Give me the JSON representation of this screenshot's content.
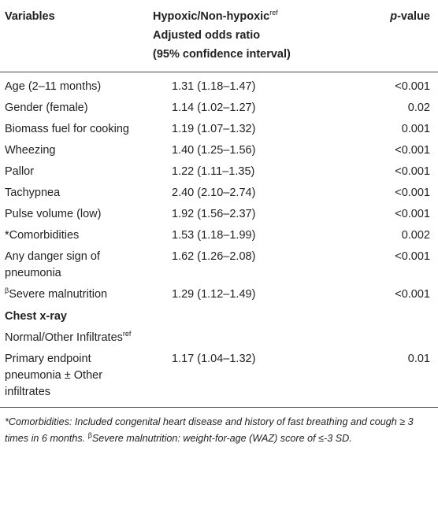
{
  "table": {
    "headers": {
      "variables": "Variables",
      "ratio_line1": "Hypoxic/Non-hypoxic",
      "ratio_line1_sup": "ref",
      "ratio_line2": "Adjusted odds ratio",
      "ratio_line3": "(95% confidence interval)",
      "pvalue_italic": "p",
      "pvalue_rest": "-value"
    },
    "rows": [
      {
        "prefix": "",
        "label": "Age (2–11 months)",
        "value": "1.31 (1.18–1.47)",
        "p": "<0.001"
      },
      {
        "prefix": "",
        "label": "Gender (female)",
        "value": "1.14 (1.02–1.27)",
        "p": "0.02"
      },
      {
        "prefix": "",
        "label": "Biomass fuel for cooking",
        "value": "1.19 (1.07–1.32)",
        "p": "0.001"
      },
      {
        "prefix": "",
        "label": "Wheezing",
        "value": "1.40 (1.25–1.56)",
        "p": "<0.001"
      },
      {
        "prefix": "",
        "label": "Pallor",
        "value": "1.22 (1.11–1.35)",
        "p": "<0.001"
      },
      {
        "prefix": "",
        "label": "Tachypnea",
        "value": "2.40 (2.10–2.74)",
        "p": "<0.001"
      },
      {
        "prefix": "",
        "label": "Pulse volume (low)",
        "value": "1.92 (1.56–2.37)",
        "p": "<0.001"
      },
      {
        "prefix": "",
        "label": "*Comorbidities",
        "value": "1.53 (1.18–1.99)",
        "p": "0.002"
      },
      {
        "prefix": "",
        "label": "Any danger sign of pneumonia",
        "value": "1.62 (1.26–2.08)",
        "p": "<0.001"
      },
      {
        "prefix": "β",
        "label": "Severe malnutrition",
        "value": "1.29 (1.12–1.49)",
        "p": "<0.001"
      }
    ],
    "section_title": "Chest x-ray",
    "reference_row": {
      "label": "Normal/Other Infiltrates",
      "sup": "ref"
    },
    "last_row": {
      "label": "Primary endpoint pneumonia ± Other infiltrates",
      "value": "1.17 (1.04–1.32)",
      "p": "0.01"
    }
  },
  "footnote": {
    "part1": "*Comorbidities: Included congenital heart disease and history of fast breathing and cough ≥ 3 times in 6 months. ",
    "beta": "β",
    "part2": "Severe malnutrition: weight-for-age (WAZ) score of ≤-3 SD."
  }
}
